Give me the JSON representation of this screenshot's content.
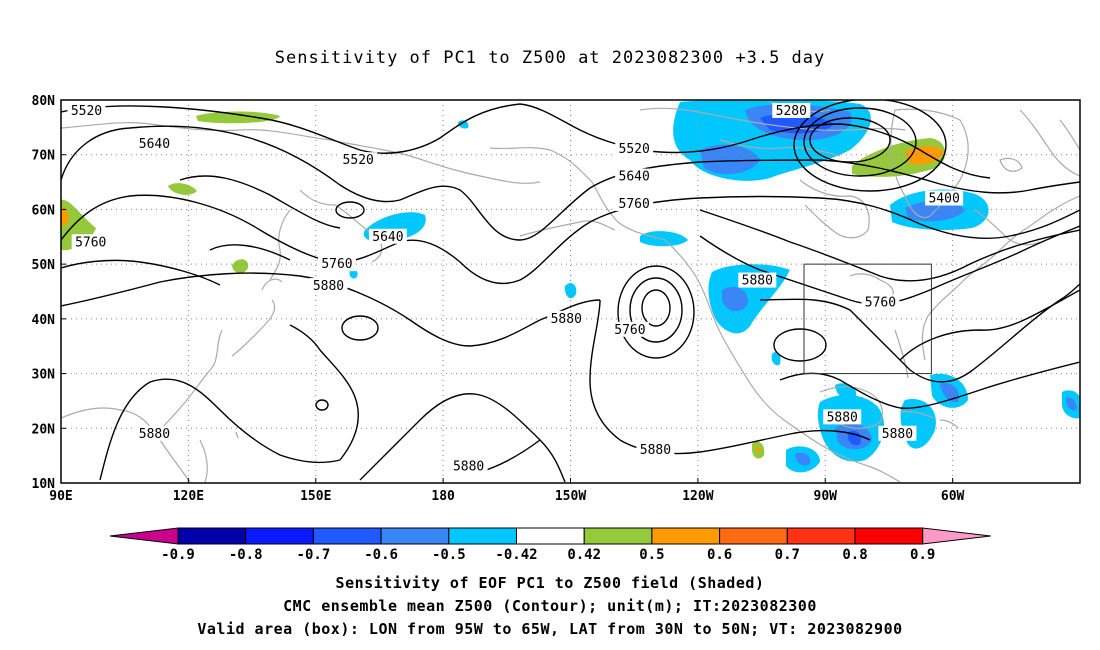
{
  "title": "Sensitivity of PC1 to Z500 at 2023082300 +3.5 day",
  "axes": {
    "lat_labels": [
      "80N",
      "70N",
      "60N",
      "50N",
      "40N",
      "30N",
      "20N",
      "10N"
    ],
    "lon_labels": [
      "90E",
      "120E",
      "150E",
      "180",
      "150W",
      "120W",
      "90W",
      "60W"
    ],
    "lon_range": [
      "90E",
      "30W"
    ],
    "lat_range": [
      "10N",
      "80N"
    ],
    "grid": "dotted"
  },
  "contours": {
    "variable": "Z500",
    "unit": "m",
    "labels": [
      {
        "value": "5520",
        "lon": 96,
        "lat": 78
      },
      {
        "value": "5640",
        "lon": 112,
        "lat": 72
      },
      {
        "value": "5520",
        "lon": 160,
        "lat": 69
      },
      {
        "value": "5760",
        "lon": 97,
        "lat": 54
      },
      {
        "value": "5640",
        "lon": 167,
        "lat": 55
      },
      {
        "value": "5760",
        "lon": 155,
        "lat": 50
      },
      {
        "value": "5880",
        "lon": 153,
        "lat": 46
      },
      {
        "value": "5880",
        "lon": 112,
        "lat": 19
      },
      {
        "value": "5880",
        "lon": 186,
        "lat": 13
      },
      {
        "value": "5880",
        "lon": 209,
        "lat": 40
      },
      {
        "value": "5760",
        "lon": 224,
        "lat": 38
      },
      {
        "value": "5520",
        "lon": 225,
        "lat": 71
      },
      {
        "value": "5640",
        "lon": 225,
        "lat": 66
      },
      {
        "value": "5760",
        "lon": 225,
        "lat": 61
      },
      {
        "value": "5280",
        "lon": 262,
        "lat": 78
      },
      {
        "value": "5400",
        "lon": 298,
        "lat": 62
      },
      {
        "value": "5880",
        "lon": 254,
        "lat": 47
      },
      {
        "value": "5760",
        "lon": 283,
        "lat": 43
      },
      {
        "value": "5880",
        "lon": 230,
        "lat": 16
      },
      {
        "value": "5880",
        "lon": 274,
        "lat": 22
      },
      {
        "value": "5880",
        "lon": 287,
        "lat": 19
      }
    ]
  },
  "colorbar": {
    "labels": [
      "-0.9",
      "-0.8",
      "-0.7",
      "-0.6",
      "-0.5",
      "-0.42",
      "0.42",
      "0.5",
      "0.6",
      "0.7",
      "0.8",
      "0.9"
    ],
    "colors": [
      "#0000a8",
      "#0a1aff",
      "#1e5aff",
      "#3a86f6",
      "#00c8ff",
      "#ffffff",
      "#96c83c",
      "#ff9a00",
      "#ff6a14",
      "#ff3214",
      "#ff0000"
    ],
    "under_color": "#c8008c",
    "over_color": "#ff9ac8"
  },
  "valid_box": {
    "lon_min": 265,
    "lon_max": 295,
    "lat_min": 30,
    "lat_max": 50
  },
  "captions": {
    "line1": "Sensitivity of EOF PC1 to Z500 field (Shaded)",
    "line2": "CMC ensemble mean Z500 (Contour); unit(m); IT:2023082300",
    "line3": "Valid area (box): LON from 95W to 65W, LAT from 30N to 50N; VT: 2023082900"
  }
}
